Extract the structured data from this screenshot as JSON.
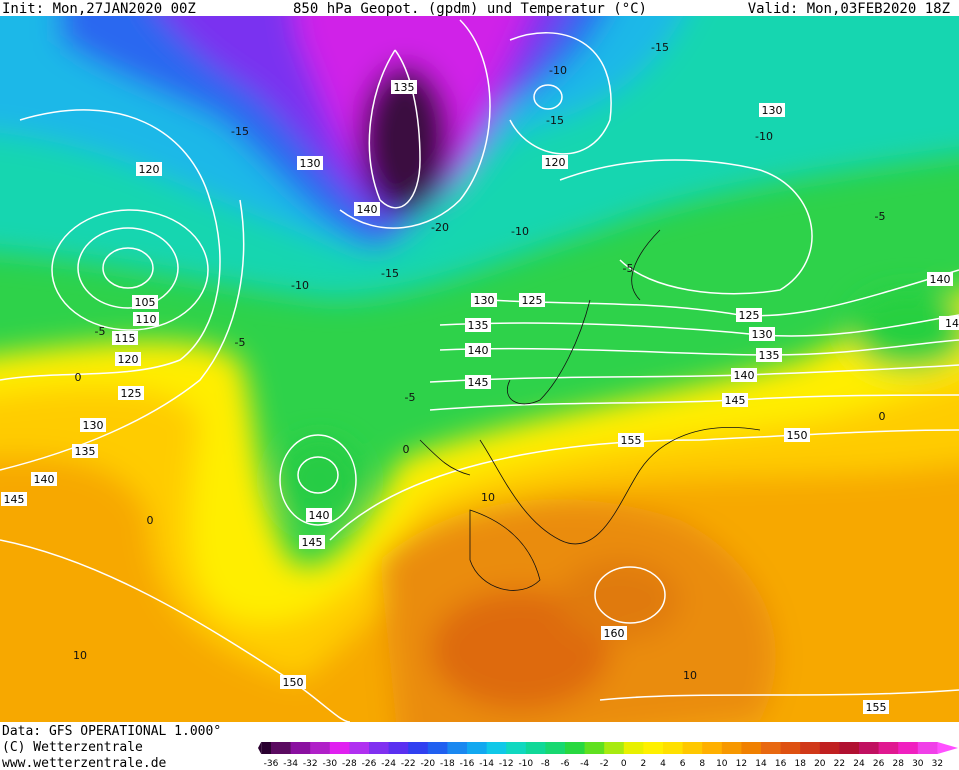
{
  "header": {
    "init": "Init: Mon,27JAN2020 00Z",
    "title": "850 hPa Geopot. (gpdm) und Temperatur (°C)",
    "valid": "Valid: Mon,03FEB2020 18Z"
  },
  "footer": {
    "data": "Data: GFS OPERATIONAL 1.000°",
    "copyright": "(C) Wetterzentrale",
    "url": "www.wetterzentrale.de"
  },
  "colorbar": {
    "ticks": [
      -36,
      -34,
      -32,
      -30,
      -28,
      -26,
      -24,
      -22,
      -20,
      -18,
      -16,
      -14,
      -12,
      -10,
      -8,
      -6,
      -4,
      -2,
      0,
      2,
      4,
      6,
      8,
      10,
      12,
      14,
      16,
      18,
      20,
      22,
      24,
      26,
      28,
      30,
      32
    ]
  },
  "map": {
    "height_labels": [
      135,
      130,
      140,
      120,
      120,
      130,
      105,
      110,
      115,
      120,
      125,
      130,
      135,
      140,
      145,
      130,
      125,
      135,
      140,
      145,
      125,
      130,
      135,
      140,
      145,
      150,
      155,
      140,
      145,
      160,
      150,
      155,
      140,
      14
    ],
    "temperature_labels": [
      -15,
      -10,
      -15,
      -10,
      -15,
      -5,
      -20,
      -10,
      -15,
      -10,
      -5,
      -5,
      -5,
      0,
      -5,
      0,
      0,
      10,
      10,
      10,
      0
    ]
  }
}
